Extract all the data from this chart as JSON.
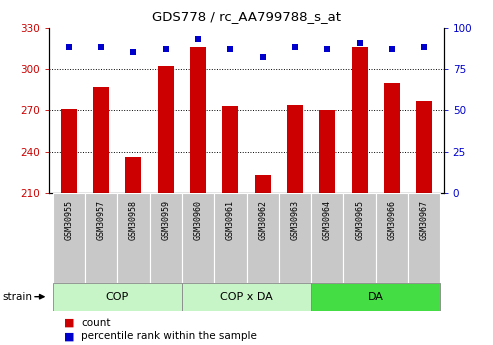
{
  "title": "GDS778 / rc_AA799788_s_at",
  "samples": [
    "GSM30955",
    "GSM30957",
    "GSM30958",
    "GSM30959",
    "GSM30960",
    "GSM30961",
    "GSM30962",
    "GSM30963",
    "GSM30964",
    "GSM30965",
    "GSM30966",
    "GSM30967"
  ],
  "count_values": [
    271,
    287,
    236,
    302,
    316,
    273,
    223,
    274,
    270,
    316,
    290,
    277
  ],
  "percentile_values": [
    88,
    88,
    85,
    87,
    93,
    87,
    82,
    88,
    87,
    91,
    87,
    88
  ],
  "group_labels": [
    "COP",
    "COP x DA",
    "DA"
  ],
  "group_starts": [
    0,
    4,
    8
  ],
  "group_ends": [
    4,
    8,
    12
  ],
  "group_colors": [
    "#c8f5c8",
    "#c8f5c8",
    "#44dd44"
  ],
  "ylim_left": [
    210,
    330
  ],
  "ylim_right": [
    0,
    100
  ],
  "yticks_left": [
    210,
    240,
    270,
    300,
    330
  ],
  "yticks_right": [
    0,
    25,
    50,
    75,
    100
  ],
  "bar_color": "#CC0000",
  "dot_color": "#0000CC",
  "bar_width": 0.5,
  "tick_label_color_left": "#CC0000",
  "tick_label_color_right": "#0000CC",
  "strain_label": "strain",
  "legend_count_label": "count",
  "legend_percentile_label": "percentile rank within the sample",
  "sample_bg_color": "#C8C8C8",
  "gridline_ticks": [
    240,
    270,
    300
  ]
}
